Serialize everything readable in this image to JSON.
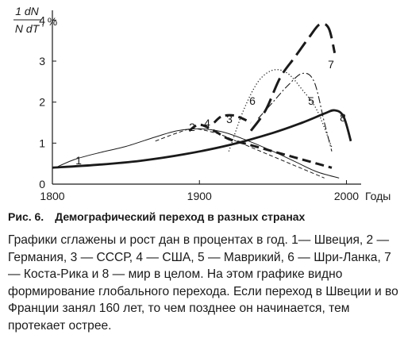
{
  "figure_label": "Рис. 6.",
  "figure_title": "Демографический переход в разных странах",
  "caption": "Графики сглажены и рост дан в процентах в год. 1— Швеция, 2 — Германия, 3 — СССР, 4 — США, 5 — Маврикий, 6 — Шри-Ланка, 7 — Коста-Рика и 8 — мир в целом. На этом графике видно формирование глобального перехода. Если переход в Швеции и во Франции занял 160 лет, то чем позднее он начинается, тем протекает острее.",
  "chart_data": {
    "type": "line",
    "title": "",
    "ylabel": {
      "numerator": "1 dN",
      "denominator": "N dT",
      "unit": ", %"
    },
    "xlabel": "Годы",
    "xlim": [
      1800,
      2010
    ],
    "ylim": [
      0,
      4.2
    ],
    "xticks": [
      "1800",
      "1900",
      "2000"
    ],
    "yticks": [
      "0",
      "1",
      "2",
      "3",
      "4"
    ],
    "grid": false,
    "series": [
      {
        "name": "1",
        "style": "thin",
        "x": [
          1802,
          1815,
          1830,
          1850,
          1870,
          1885,
          1900,
          1915,
          1930,
          1950,
          1965,
          1980,
          1995
        ],
        "y": [
          0.4,
          0.6,
          0.75,
          0.92,
          1.15,
          1.3,
          1.35,
          1.28,
          1.1,
          0.8,
          0.55,
          0.3,
          0.15
        ]
      },
      {
        "name": "2",
        "style": "thin-dashed",
        "x": [
          1870,
          1885,
          1895,
          1905,
          1915,
          1925,
          1935,
          1945,
          1955,
          1965,
          1975,
          1985
        ],
        "y": [
          1.05,
          1.25,
          1.35,
          1.3,
          1.2,
          1.05,
          0.9,
          0.75,
          0.6,
          0.45,
          0.3,
          0.15
        ]
      },
      {
        "name": "3",
        "style": "thick-dashed",
        "x": [
          1910,
          1915,
          1922,
          1928,
          1935
        ],
        "y": [
          1.5,
          1.65,
          1.68,
          1.62,
          1.5
        ]
      },
      {
        "name": "4",
        "style": "thick-dashed",
        "x": [
          1893,
          1900,
          1910,
          1920,
          1935,
          1950,
          1965,
          1980,
          1990
        ],
        "y": [
          1.3,
          1.45,
          1.3,
          1.1,
          0.95,
          0.8,
          0.65,
          0.5,
          0.4
        ]
      },
      {
        "name": "5",
        "style": "thin-dashdot",
        "x": [
          1940,
          1950,
          1960,
          1970,
          1978,
          1985,
          1990
        ],
        "y": [
          1.6,
          2.0,
          2.4,
          2.7,
          2.5,
          1.5,
          0.8
        ]
      },
      {
        "name": "6",
        "style": "dotted",
        "x": [
          1920,
          1930,
          1940,
          1950,
          1960,
          1970,
          1980,
          1990
        ],
        "y": [
          0.8,
          1.8,
          2.5,
          2.78,
          2.7,
          2.3,
          1.8,
          0.9
        ]
      },
      {
        "name": "7",
        "style": "thick-longdash",
        "x": [
          1935,
          1945,
          1955,
          1965,
          1975,
          1982,
          1988,
          1992
        ],
        "y": [
          1.3,
          1.8,
          2.6,
          3.1,
          3.6,
          3.9,
          3.8,
          3.2
        ]
      },
      {
        "name": "8",
        "style": "thick",
        "x": [
          1800,
          1830,
          1860,
          1890,
          1920,
          1950,
          1970,
          1985,
          1992,
          1998,
          2003
        ],
        "y": [
          0.4,
          0.47,
          0.57,
          0.73,
          0.95,
          1.25,
          1.5,
          1.72,
          1.8,
          1.65,
          1.05
        ]
      }
    ]
  }
}
